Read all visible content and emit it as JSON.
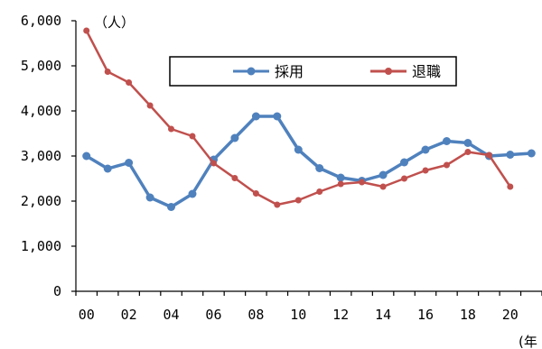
{
  "chart_data": {
    "type": "line",
    "y_unit": "（人）",
    "x_unit": "(年",
    "x_tick_labels": [
      "00",
      "02",
      "04",
      "06",
      "08",
      "10",
      "12",
      "14",
      "16",
      "18",
      "20"
    ],
    "y_tick_labels": [
      "0",
      "1,000",
      "2,000",
      "3,000",
      "4,000",
      "5,000",
      "6,000"
    ],
    "ylim": [
      0,
      6000
    ],
    "x": [
      2000,
      2001,
      2002,
      2003,
      2004,
      2005,
      2006,
      2007,
      2008,
      2009,
      2010,
      2011,
      2012,
      2013,
      2014,
      2015,
      2016,
      2017,
      2018,
      2019,
      2020,
      2021
    ],
    "legend_position": "top-right",
    "grid": false,
    "series": [
      {
        "name": "採用",
        "color": "#4f81bd",
        "values": [
          3000,
          2720,
          2850,
          2080,
          1870,
          2160,
          2920,
          3400,
          3880,
          3880,
          3140,
          2730,
          2520,
          2450,
          2580,
          2860,
          3140,
          3330,
          3290,
          3000,
          3030,
          3060
        ]
      },
      {
        "name": "退職",
        "color": "#c0504d",
        "values": [
          5780,
          4870,
          4630,
          4120,
          3600,
          3440,
          2840,
          2510,
          2170,
          1920,
          2020,
          2210,
          2380,
          2420,
          2320,
          2500,
          2680,
          2800,
          3090,
          3020,
          2320,
          null
        ]
      }
    ]
  }
}
